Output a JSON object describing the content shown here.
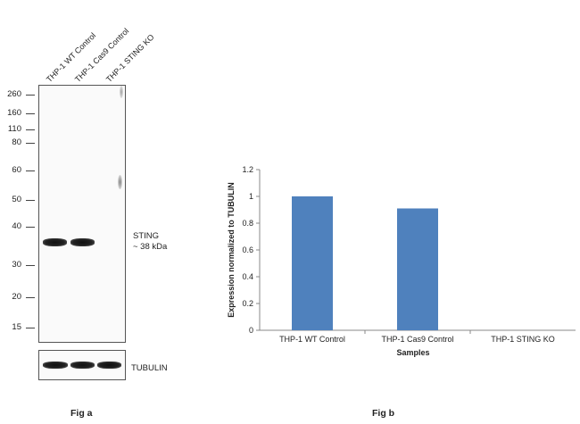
{
  "western_blot": {
    "lane_labels": [
      "THP-1 WT Control",
      "THP-1 Cas9 Control",
      "THP-1 STING KO"
    ],
    "mw_markers": [
      "260",
      "160",
      "110",
      "80",
      "60",
      "50",
      "40",
      "30",
      "20",
      "15"
    ],
    "target_label_line1": "STING",
    "target_label_line2": "~ 38 kDa",
    "loading_control_label": "TUBULIN",
    "caption": "Fig a"
  },
  "chart_caption": "Fig b",
  "chart_data": {
    "type": "bar",
    "categories": [
      "THP-1 WT Control",
      "THP-1 Cas9 Control",
      "THP-1 STING KO"
    ],
    "values": [
      1.0,
      0.91,
      0.0
    ],
    "xlabel": "Samples",
    "ylabel": "Expression  normalized to TUBULIN",
    "ylim": [
      0,
      1.2
    ],
    "yticks": [
      "0",
      "0.2",
      "0.4",
      "0.6",
      "0.8",
      "1",
      "1.2"
    ],
    "bar_color": "#4f81bd",
    "grid": false,
    "legend": "none"
  }
}
